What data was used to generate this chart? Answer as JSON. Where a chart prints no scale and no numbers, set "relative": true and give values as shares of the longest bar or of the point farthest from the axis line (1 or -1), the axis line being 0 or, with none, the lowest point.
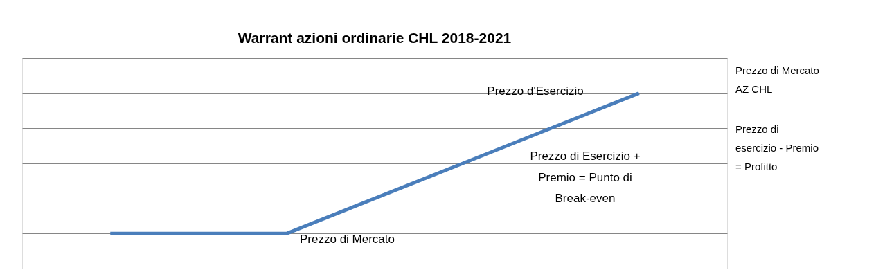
{
  "chart_data": {
    "type": "line",
    "title": "Warrant azioni ordinarie CHL 2018-2021",
    "categories": [
      null,
      null,
      null,
      null
    ],
    "series": [
      {
        "color": "#4a7ebb",
        "values": [
          0.2,
          0.2,
          0.6,
          1.0
        ]
      }
    ],
    "relative": true,
    "grid": "y",
    "marker": "none",
    "line_style": "solid",
    "annotations": [
      "Prezzo d'Esercizio",
      "Prezzo di Esercizio +\nPremio = Punto di\nBreak-even",
      "Prezzo di Mercato",
      "Prezzo di Mercato\nAZ CHL",
      "Prezzo di\nesercizio - Premio\n= Profitto"
    ]
  }
}
